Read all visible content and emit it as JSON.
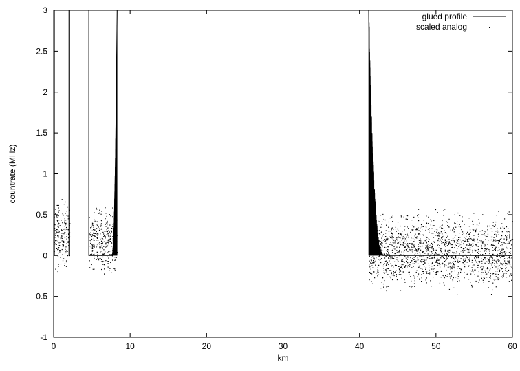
{
  "chart_data": {
    "type": "scatter",
    "title": "",
    "xlabel": "km",
    "ylabel": "countrate (MHz)",
    "xlim": [
      0,
      60
    ],
    "ylim": [
      -1,
      3
    ],
    "grid": false,
    "legend_position": "top-right",
    "x_ticks": [
      0,
      10,
      20,
      30,
      40,
      50,
      60
    ],
    "x_tick_labels": [
      "0",
      "10",
      "20",
      "30",
      "40",
      "50",
      "60"
    ],
    "y_ticks": [
      -1,
      -0.5,
      0,
      0.5,
      1,
      1.5,
      2,
      2.5,
      3
    ],
    "y_tick_labels": [
      "-1",
      "-0.5",
      "0",
      "0.5",
      "1",
      "1.5",
      "2",
      "2.5",
      "3"
    ],
    "series": [
      {
        "name": "glued profile",
        "style": "line",
        "x": [
          0,
          0.1,
          0.1,
          2.0,
          2.0,
          2.1,
          2.1,
          4.6,
          4.6,
          4.7,
          4.7,
          7.7,
          7.9,
          8.1,
          8.2,
          8.3,
          41.2,
          41.4,
          41.6,
          41.8,
          42.0,
          42.3,
          42.6,
          43.0,
          60
        ],
        "y": [
          0,
          0,
          3,
          3,
          0,
          0,
          3,
          3,
          0,
          0,
          0,
          0,
          0.3,
          1.2,
          2.2,
          3,
          3,
          1.8,
          1.0,
          0.6,
          0.3,
          0.15,
          0.05,
          0,
          0
        ]
      },
      {
        "name": "scaled analog",
        "style": "points",
        "segments": [
          {
            "x_range": [
              0,
              2.1
            ],
            "y_center": 0.25,
            "y_spread": 0.55
          },
          {
            "x_range": [
              4.6,
              8.3
            ],
            "y_center": 0.2,
            "y_spread": 0.5
          },
          {
            "x_range": [
              41.2,
              60
            ],
            "y_center": 0.05,
            "y_spread": 0.6
          }
        ]
      }
    ]
  }
}
